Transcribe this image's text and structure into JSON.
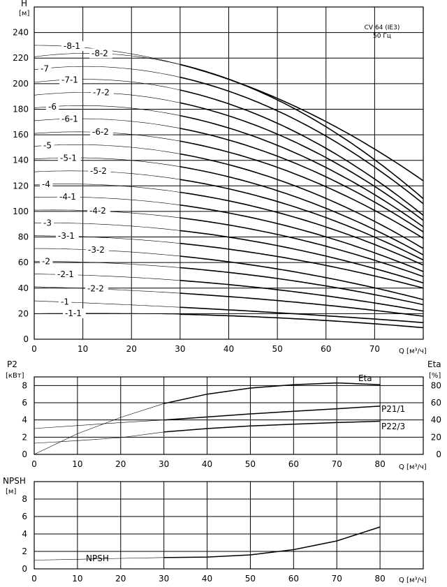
{
  "chart_data": [
    {
      "type": "line",
      "yaxis_symbol": "H",
      "yaxis_unit": "[м]",
      "xaxis_unit": "Q [м³/ч]",
      "xticks": [
        "0",
        "10",
        "20",
        "30",
        "40",
        "50",
        "60",
        "70"
      ],
      "yticks": [
        "0",
        "20",
        "40",
        "60",
        "80",
        "100",
        "120",
        "140",
        "160",
        "180",
        "200",
        "220",
        "240"
      ],
      "xlim": [
        0,
        80
      ],
      "ylim": [
        0,
        260
      ],
      "grid": true,
      "annotation": [
        "CV 64 (IE3)",
        "50 Гц"
      ],
      "series": [
        {
          "name": "-1-1",
          "y0": 20,
          "y30": 19.5,
          "y80": 9
        },
        {
          "name": "-1",
          "y0": 30,
          "y30": 25,
          "y80": 13
        },
        {
          "name": "-2-2",
          "y0": 41,
          "y30": 36,
          "y80": 18
        },
        {
          "name": "-2-1",
          "y0": 51,
          "y30": 46,
          "y80": 22
        },
        {
          "name": "-2",
          "y0": 61,
          "y30": 56,
          "y80": 27
        },
        {
          "name": "-3-2",
          "y0": 71,
          "y30": 65,
          "y80": 31
        },
        {
          "name": "-3-1",
          "y0": 81,
          "y30": 75,
          "y80": 40
        },
        {
          "name": "-3",
          "y0": 91,
          "y30": 85,
          "y80": 44
        },
        {
          "name": "-4-2",
          "y0": 101,
          "y30": 95,
          "y80": 49
        },
        {
          "name": "-4-1",
          "y0": 111,
          "y30": 105,
          "y80": 53
        },
        {
          "name": "-4",
          "y0": 121,
          "y30": 115,
          "y80": 58
        },
        {
          "name": "-5-2",
          "y0": 131,
          "y30": 125,
          "y80": 62
        },
        {
          "name": "-5-1",
          "y0": 141,
          "y30": 135,
          "y80": 66
        },
        {
          "name": "-5",
          "y0": 151,
          "y30": 145,
          "y80": 71
        },
        {
          "name": "-6-2",
          "y0": 161,
          "y30": 155,
          "y80": 79
        },
        {
          "name": "-6-1",
          "y0": 171,
          "y30": 165,
          "y80": 84
        },
        {
          "name": "-6",
          "y0": 181,
          "y30": 175,
          "y80": 88
        },
        {
          "name": "-7-2",
          "y0": 191,
          "y30": 185,
          "y80": 93
        },
        {
          "name": "-7-1",
          "y0": 201,
          "y30": 195,
          "y80": 97
        },
        {
          "name": "-7",
          "y0": 211,
          "y30": 205,
          "y80": 106
        },
        {
          "name": "-8-2",
          "y0": 221,
          "y30": 215,
          "y80": 110
        },
        {
          "name": "-8-1",
          "y0": 230,
          "y30": 215,
          "y80": 115
        }
      ],
      "top_curve_end": 124
    },
    {
      "type": "line",
      "yaxis_left_symbol": "P2",
      "yaxis_left_unit": "[кВт]",
      "yaxis_right_symbol": "Eta",
      "yaxis_right_unit": "[%]",
      "xaxis_unit": "Q [м³/ч]",
      "xticks": [
        "0",
        "10",
        "20",
        "30",
        "40",
        "50",
        "60",
        "70",
        "80"
      ],
      "yticks_left": [
        "0",
        "2",
        "4",
        "6",
        "8"
      ],
      "yticks_right": [
        "0",
        "20",
        "40",
        "60",
        "80"
      ],
      "xlim": [
        0,
        90
      ],
      "ylim_left": [
        0,
        9
      ],
      "ylim_right": [
        0,
        90
      ],
      "grid": true,
      "series": [
        {
          "name": "Eta",
          "axis": "right",
          "x": [
            0,
            10,
            20,
            30,
            40,
            50,
            60,
            70,
            80
          ],
          "y": [
            0,
            24,
            43,
            59,
            70,
            77,
            81,
            83,
            81
          ]
        },
        {
          "name": "P21/1",
          "axis": "left",
          "x": [
            0,
            10,
            20,
            30,
            40,
            50,
            60,
            70,
            80
          ],
          "y": [
            3.0,
            3.35,
            3.7,
            4.0,
            4.35,
            4.7,
            5.0,
            5.3,
            5.6
          ]
        },
        {
          "name": "P22/3",
          "axis": "left",
          "x": [
            0,
            10,
            20,
            30,
            40,
            50,
            60,
            70,
            80
          ],
          "y": [
            1.3,
            1.6,
            1.95,
            2.6,
            3.0,
            3.3,
            3.5,
            3.7,
            3.85
          ]
        }
      ]
    },
    {
      "type": "line",
      "yaxis_symbol": "NPSH",
      "yaxis_unit": "[м]",
      "xaxis_unit": "Q [м³/ч]",
      "xticks": [
        "0",
        "10",
        "20",
        "30",
        "40",
        "50",
        "60",
        "70",
        "80"
      ],
      "yticks": [
        "0",
        "2",
        "4",
        "6",
        "8"
      ],
      "xlim": [
        0,
        90
      ],
      "ylim": [
        0,
        10
      ],
      "grid": true,
      "series": [
        {
          "name": "NPSH",
          "x": [
            0,
            10,
            20,
            30,
            40,
            50,
            60,
            70,
            80
          ],
          "y": [
            1.0,
            1.1,
            1.2,
            1.3,
            1.35,
            1.6,
            2.2,
            3.2,
            4.8
          ]
        }
      ]
    }
  ]
}
